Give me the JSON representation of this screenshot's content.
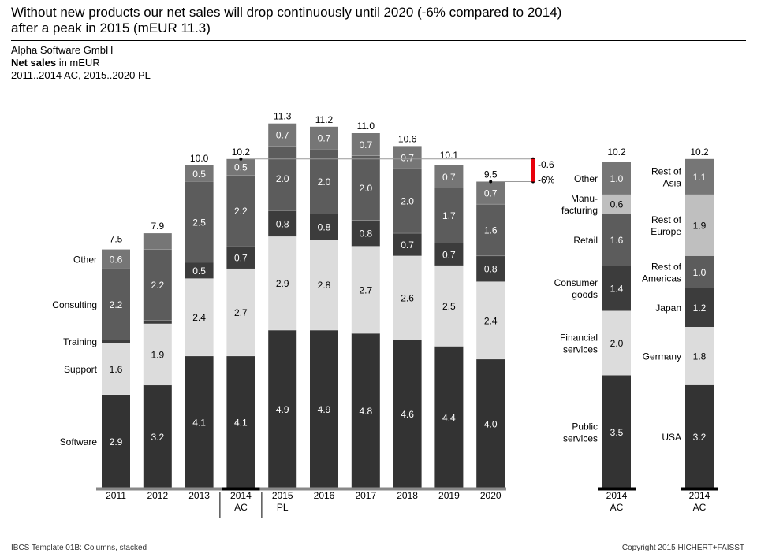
{
  "header": {
    "title_line1": "Without new products our net sales will drop continuously until 2020 (-6% compared to 2014)",
    "title_line2": "after a peak in 2015 (mEUR 11.3)",
    "company": "Alpha Software GmbH",
    "measure_bold": "Net sales",
    "measure_rest": " in mEUR",
    "period": "2011..2014 AC, 2015..2020 PL"
  },
  "footer": {
    "left": "IBCS Template 01B: Columns, stacked",
    "right": "Copyright 2015 HICHERT+FAISST"
  },
  "colors": {
    "c1": "#333333",
    "c2": "#dcdcdc",
    "c3": "#3c3c3c",
    "c4": "#5c5c5c",
    "c5": "#767676",
    "c6": "#bfbfbf",
    "c7": "#909090",
    "delta": "#e8000b"
  },
  "chart_data": [
    {
      "type": "bar",
      "stacked": true,
      "categories": [
        "2011",
        "2012",
        "2013",
        "2014\nAC",
        "2015\nPL",
        "2016",
        "2017",
        "2018",
        "2019",
        "2020"
      ],
      "series": [
        {
          "name": "Software",
          "values": [
            2.9,
            3.2,
            4.1,
            4.1,
            4.9,
            4.9,
            4.8,
            4.6,
            4.4,
            4.0
          ],
          "color": "#333333"
        },
        {
          "name": "Support",
          "values": [
            1.6,
            1.9,
            2.4,
            2.7,
            2.9,
            2.8,
            2.7,
            2.6,
            2.5,
            2.4
          ],
          "color": "#dcdcdc"
        },
        {
          "name": "Training",
          "values": [
            0.1,
            0.1,
            0.5,
            0.7,
            0.8,
            0.8,
            0.8,
            0.7,
            0.7,
            0.8
          ],
          "color": "#3c3c3c"
        },
        {
          "name": "Consulting",
          "values": [
            2.2,
            2.2,
            2.5,
            2.2,
            2.0,
            2.0,
            2.0,
            2.0,
            1.7,
            1.6
          ],
          "color": "#5c5c5c"
        },
        {
          "name": "Other",
          "values": [
            0.6,
            0.5,
            0.5,
            0.5,
            0.7,
            0.7,
            0.7,
            0.7,
            0.7,
            0.7
          ],
          "color": "#767676"
        }
      ],
      "value_labels": [
        [
          "2.9",
          "3.2",
          "4.1",
          "4.1",
          "4.9",
          "4.9",
          "4.8",
          "4.6",
          "4.4",
          "4.0"
        ],
        [
          "1.6",
          "1.9",
          "2.4",
          "2.7",
          "2.9",
          "2.8",
          "2.7",
          "2.6",
          "2.5",
          "2.4"
        ],
        [
          "",
          "",
          "0.5",
          "0.7",
          "0.8",
          "0.8",
          "0.8",
          "0.7",
          "0.7",
          "0.8"
        ],
        [
          "2.2",
          "2.2",
          "2.5",
          "2.2",
          "2.0",
          "2.0",
          "2.0",
          "2.0",
          "1.7",
          "1.6"
        ],
        [
          "0.6",
          "",
          "0.5",
          "0.5",
          "0.7",
          "0.7",
          "0.7",
          "0.7",
          "0.7",
          "0.7"
        ]
      ],
      "totals": [
        7.5,
        7.9,
        10.0,
        10.2,
        11.3,
        11.2,
        11.0,
        10.6,
        10.1,
        9.5
      ],
      "total_labels": [
        "7.5",
        "7.9",
        "10.0",
        "10.2",
        "11.3",
        "11.2",
        "11.0",
        "10.6",
        "10.1",
        "9.5"
      ],
      "highlight_category": "2014\nAC",
      "delta": {
        "from": "2014\nAC",
        "to": "2020",
        "abs_label": "-0.6",
        "pct_label": "-6%"
      }
    },
    {
      "type": "bar",
      "stacked": true,
      "categories": [
        "2014\nAC"
      ],
      "series": [
        {
          "name": "Public\nservices",
          "values": [
            3.5
          ],
          "color": "#333333"
        },
        {
          "name": "Financial\nservices",
          "values": [
            2.0
          ],
          "color": "#dcdcdc"
        },
        {
          "name": "Consumer\ngoods",
          "values": [
            1.4
          ],
          "color": "#3c3c3c"
        },
        {
          "name": "Retail",
          "values": [
            1.6
          ],
          "color": "#5c5c5c"
        },
        {
          "name": "Manu-\nfacturing",
          "values": [
            0.6
          ],
          "color": "#bfbfbf"
        },
        {
          "name": "Other",
          "values": [
            1.0
          ],
          "color": "#767676"
        }
      ],
      "totals": [
        10.2
      ],
      "total_labels": [
        "10.2"
      ]
    },
    {
      "type": "bar",
      "stacked": true,
      "categories": [
        "2014\nAC"
      ],
      "series": [
        {
          "name": "USA",
          "values": [
            3.2
          ],
          "color": "#333333"
        },
        {
          "name": "Germany",
          "values": [
            1.8
          ],
          "color": "#dcdcdc"
        },
        {
          "name": "Japan",
          "values": [
            1.2
          ],
          "color": "#3c3c3c"
        },
        {
          "name": "Rest of\nAmericas",
          "values": [
            1.0
          ],
          "color": "#5c5c5c"
        },
        {
          "name": "Rest of\nEurope",
          "values": [
            1.9
          ],
          "color": "#bfbfbf"
        },
        {
          "name": "Rest of\nAsia",
          "values": [
            1.1
          ],
          "color": "#767676"
        }
      ],
      "totals": [
        10.2
      ],
      "total_labels": [
        "10.2"
      ]
    }
  ]
}
